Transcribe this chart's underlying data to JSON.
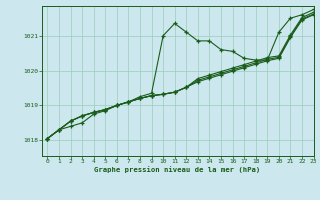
{
  "title": "Graphe pression niveau de la mer (hPa)",
  "background_color": "#cce8ee",
  "grid_color": "#99ccbb",
  "line_color": "#1a5c1a",
  "marker_color": "#1a5c1a",
  "xlim": [
    -0.5,
    23
  ],
  "ylim": [
    1017.55,
    1021.85
  ],
  "yticks": [
    1018,
    1019,
    1020,
    1021
  ],
  "xticks": [
    0,
    1,
    2,
    3,
    4,
    5,
    6,
    7,
    8,
    9,
    10,
    11,
    12,
    13,
    14,
    15,
    16,
    17,
    18,
    19,
    20,
    21,
    22,
    23
  ],
  "series": [
    [
      1018.05,
      1018.3,
      1018.4,
      1018.5,
      1018.75,
      1018.85,
      1019.0,
      1019.1,
      1019.25,
      1019.35,
      1021.0,
      1021.35,
      1021.1,
      1020.85,
      1020.85,
      1020.6,
      1020.55,
      1020.35,
      1020.3,
      1020.3,
      1021.1,
      1021.5,
      1021.6,
      1021.75
    ],
    [
      1018.05,
      1018.3,
      1018.55,
      1018.7,
      1018.8,
      1018.88,
      1019.0,
      1019.1,
      1019.2,
      1019.28,
      1019.32,
      1019.38,
      1019.52,
      1019.68,
      1019.78,
      1019.88,
      1019.98,
      1020.08,
      1020.18,
      1020.28,
      1020.35,
      1020.95,
      1021.45,
      1021.6
    ],
    [
      1018.05,
      1018.3,
      1018.55,
      1018.7,
      1018.8,
      1018.88,
      1019.0,
      1019.1,
      1019.2,
      1019.28,
      1019.32,
      1019.38,
      1019.52,
      1019.72,
      1019.82,
      1019.92,
      1020.02,
      1020.12,
      1020.22,
      1020.32,
      1020.38,
      1020.98,
      1021.48,
      1021.62
    ],
    [
      1018.05,
      1018.3,
      1018.55,
      1018.7,
      1018.8,
      1018.88,
      1019.0,
      1019.1,
      1019.2,
      1019.28,
      1019.32,
      1019.38,
      1019.52,
      1019.77,
      1019.87,
      1019.97,
      1020.07,
      1020.17,
      1020.27,
      1020.37,
      1020.42,
      1021.02,
      1021.52,
      1021.67
    ]
  ]
}
